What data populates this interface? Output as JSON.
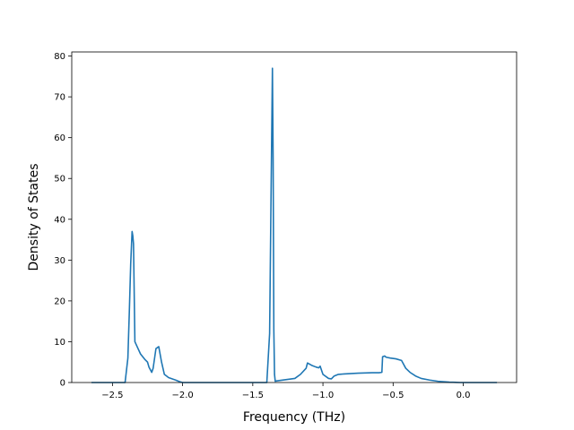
{
  "chart_data": {
    "type": "line",
    "title": "",
    "xlabel": "Frequency (THz)",
    "ylabel": "Density of States",
    "xlim": [
      -2.79,
      0.38
    ],
    "ylim": [
      0,
      81
    ],
    "grid": false,
    "line_color": "#1f77b4",
    "x_ticks": [
      {
        "value": -2.5,
        "label": "−2.5"
      },
      {
        "value": -2.0,
        "label": "−2.0"
      },
      {
        "value": -1.5,
        "label": "−1.5"
      },
      {
        "value": -1.0,
        "label": "−1.0"
      },
      {
        "value": -0.5,
        "label": "−0.5"
      },
      {
        "value": 0.0,
        "label": "0.0"
      }
    ],
    "y_ticks": [
      {
        "value": 0,
        "label": "0"
      },
      {
        "value": 10,
        "label": "10"
      },
      {
        "value": 20,
        "label": "20"
      },
      {
        "value": 30,
        "label": "30"
      },
      {
        "value": 40,
        "label": "40"
      },
      {
        "value": 50,
        "label": "50"
      },
      {
        "value": 60,
        "label": "60"
      },
      {
        "value": 70,
        "label": "70"
      },
      {
        "value": 80,
        "label": "80"
      }
    ],
    "series": [
      {
        "x": [
          -2.65,
          -2.41,
          -2.39,
          -2.38,
          -2.37,
          -2.36,
          -2.355,
          -2.35,
          -2.34,
          -2.32,
          -2.3,
          -2.27,
          -2.25,
          -2.24,
          -2.22,
          -2.21,
          -2.19,
          -2.17,
          -2.15,
          -2.13,
          -2.1,
          -2.05,
          -2.02,
          -2.0,
          -1.8,
          -1.6,
          -1.4,
          -1.38,
          -1.37,
          -1.36,
          -1.355,
          -1.35,
          -1.345,
          -1.34,
          -1.33,
          -1.2,
          -1.16,
          -1.12,
          -1.11,
          -1.08,
          -1.05,
          -1.03,
          -1.02,
          -1.0,
          -0.96,
          -0.94,
          -0.92,
          -0.89,
          -0.85,
          -0.75,
          -0.65,
          -0.6,
          -0.58,
          -0.575,
          -0.56,
          -0.55,
          -0.52,
          -0.48,
          -0.44,
          -0.41,
          -0.38,
          -0.34,
          -0.3,
          -0.24,
          -0.18,
          -0.1,
          -0.02,
          0.05,
          0.15,
          0.24
        ],
        "y": [
          0,
          0,
          6,
          17,
          29,
          37,
          36,
          34,
          10,
          8.5,
          7,
          5.7,
          5,
          3.8,
          2.5,
          3.5,
          8.3,
          8.8,
          5,
          2,
          1.2,
          0.6,
          0.2,
          0,
          0,
          0,
          0,
          12,
          45,
          77,
          55,
          13,
          2,
          0.3,
          0.4,
          1,
          2,
          3.5,
          4.8,
          4.2,
          3.8,
          3.6,
          4,
          2,
          1,
          0.9,
          1.6,
          2,
          2.1,
          2.3,
          2.4,
          2.4,
          2.5,
          6.3,
          6.5,
          6.2,
          6,
          5.8,
          5.4,
          3.5,
          2.5,
          1.6,
          1,
          0.6,
          0.3,
          0.1,
          0,
          0,
          0,
          0
        ]
      }
    ]
  }
}
